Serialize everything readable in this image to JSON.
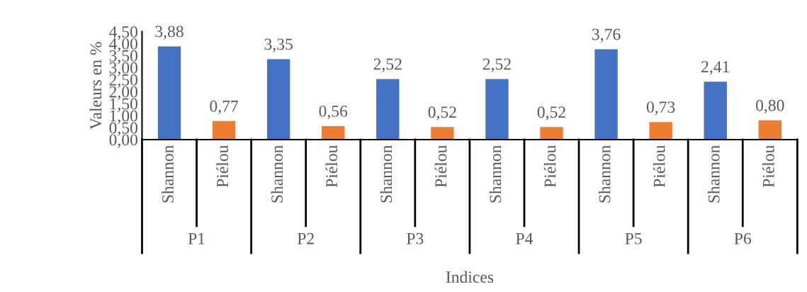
{
  "chart_data": {
    "type": "bar",
    "categories": [
      "Shannon",
      "Piélou",
      "Shannon",
      "Piélou",
      "Shannon",
      "Piélou",
      "Shannon",
      "Piélou",
      "Shannon",
      "Piélou",
      "Shannon",
      "Piélou"
    ],
    "values": [
      3.88,
      0.77,
      3.35,
      0.56,
      2.52,
      0.52,
      2.52,
      0.52,
      3.76,
      0.73,
      2.41,
      0.8
    ],
    "colors": [
      "#4472c4",
      "#ed7d31",
      "#4472c4",
      "#ed7d31",
      "#4472c4",
      "#ed7d31",
      "#4472c4",
      "#ed7d31",
      "#4472c4",
      "#ed7d31",
      "#4472c4",
      "#ed7d31"
    ],
    "value_labels": [
      "3,88",
      "0,77",
      "3,35",
      "0,56",
      "2,52",
      "0,52",
      "2,52",
      "0,52",
      "3,76",
      "0,73",
      "2,41",
      "0,80"
    ],
    "ylim": [
      0,
      4.5
    ],
    "yticks": [
      {
        "value": 0,
        "label": "0,00"
      },
      {
        "value": 0.5,
        "label": "0,50"
      },
      {
        "value": 1,
        "label": "1,00"
      },
      {
        "value": 1.5,
        "label": "1,50"
      },
      {
        "value": 2,
        "label": "2,00"
      },
      {
        "value": 2.5,
        "label": "2,50"
      },
      {
        "value": 3,
        "label": "3,00"
      },
      {
        "value": 3.5,
        "label": "3,50"
      },
      {
        "value": 4,
        "label": "4,00"
      },
      {
        "value": 4.5,
        "label": "4,50"
      }
    ],
    "ylabel": "Valeurs en %",
    "xlabel": "Indices",
    "annotations": [
      "P1",
      "P2",
      "P3",
      "P4",
      "P5",
      "P6"
    ],
    "grid": false
  }
}
